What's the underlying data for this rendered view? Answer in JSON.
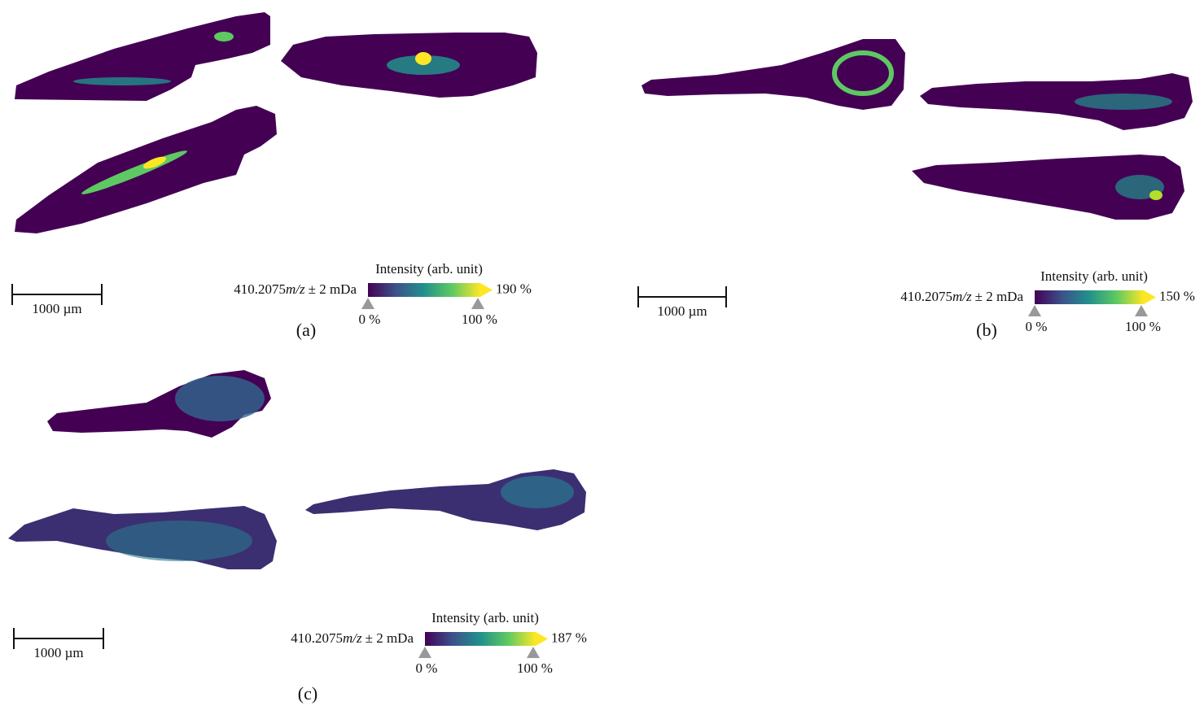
{
  "panels": [
    {
      "label": "(a)",
      "scale_bar": "1000 µm",
      "mass": "410.2075",
      "mass_unit": "m/z",
      "tolerance": "± 2 mDa",
      "colorbar": {
        "title": "Intensity (arb. unit)",
        "max_label": "190 %",
        "ticks": [
          "0 %",
          "100 %"
        ]
      }
    },
    {
      "label": "(b)",
      "scale_bar": "1000 µm",
      "mass": "410.2075",
      "mass_unit": "m/z",
      "tolerance": "± 2 mDa",
      "colorbar": {
        "title": "Intensity (arb. unit)",
        "max_label": "150 %",
        "ticks": [
          "0 %",
          "100 %"
        ]
      }
    },
    {
      "label": "(c)",
      "scale_bar": "1000 µm",
      "mass": "410.2075",
      "mass_unit": "m/z",
      "tolerance": "± 2 mDa",
      "colorbar": {
        "title": "Intensity (arb. unit)",
        "max_label": "187 %",
        "ticks": [
          "0 %",
          "100 %"
        ]
      }
    }
  ]
}
